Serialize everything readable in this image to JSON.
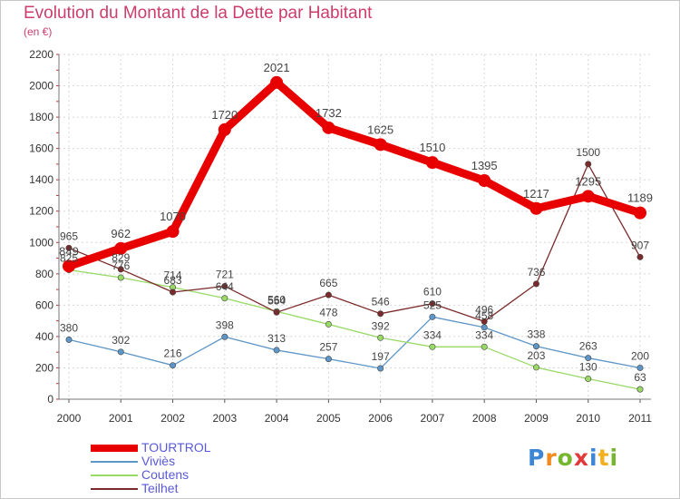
{
  "header": {
    "title": "Evolution du Montant de la Dette par Habitant",
    "unit": "(en €)"
  },
  "logo": {
    "text": "Proxiti",
    "letters": [
      {
        "ch": "P",
        "color": "#3d86d6"
      },
      {
        "ch": "r",
        "color": "#f28a1e"
      },
      {
        "ch": "o",
        "color": "#74b62e"
      },
      {
        "ch": "x",
        "color": "#e23a3a"
      },
      {
        "ch": "i",
        "color": "#3d86d6"
      },
      {
        "ch": "t",
        "color": "#f2b01e"
      },
      {
        "ch": "i",
        "color": "#74b62e"
      }
    ]
  },
  "chart_data": {
    "type": "line",
    "title": "Evolution du Montant de la Dette par Habitant",
    "ylabel": "(en €)",
    "xlabel": "",
    "categories": [
      "2000",
      "2001",
      "2002",
      "2003",
      "2004",
      "2005",
      "2006",
      "2007",
      "2008",
      "2009",
      "2010",
      "2011"
    ],
    "ylim": [
      0,
      2200
    ],
    "yticks": [
      0,
      200,
      400,
      600,
      800,
      1000,
      1200,
      1400,
      1600,
      1800,
      2000,
      2200
    ],
    "grid": true,
    "legend_position": "bottom-left",
    "series": [
      {
        "name": "TOURTROL",
        "color": "#e80000",
        "values": [
          849,
          962,
          1070,
          1720,
          2021,
          1732,
          1625,
          1510,
          1395,
          1217,
          1295,
          1189
        ]
      },
      {
        "name": "Viviès",
        "color": "#5d96c7",
        "values": [
          380,
          302,
          216,
          398,
          313,
          257,
          197,
          525,
          458,
          338,
          263,
          200
        ]
      },
      {
        "name": "Coutens",
        "color": "#99d966",
        "values": [
          825,
          776,
          714,
          644,
          560,
          478,
          392,
          334,
          334,
          203,
          130,
          63
        ]
      },
      {
        "name": "Teilhet",
        "color": "#7a2a2a",
        "values": [
          965,
          829,
          683,
          721,
          554,
          665,
          546,
          610,
          496,
          736,
          1500,
          907
        ]
      }
    ]
  }
}
